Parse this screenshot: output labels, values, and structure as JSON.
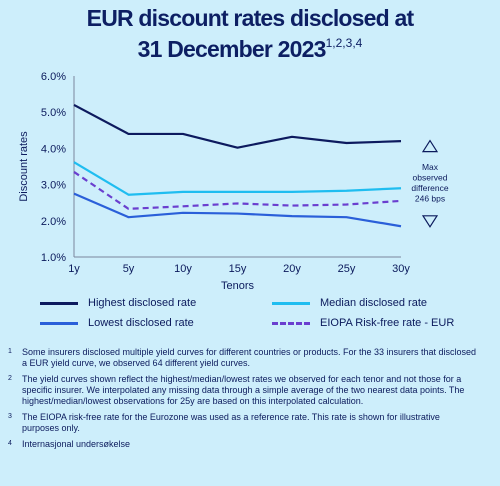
{
  "title": {
    "line1": "EUR discount rates disclosed at",
    "line2": "31 December 2023",
    "superscript": "1,2,3,4"
  },
  "chart_data": {
    "type": "line",
    "x": [
      "1y",
      "5y",
      "10y",
      "15y",
      "20y",
      "25y",
      "30y"
    ],
    "xlabel": "Tenors",
    "ylabel": "Discount rates",
    "ylim": [
      1.0,
      6.0
    ],
    "yticks": [
      "1.0%",
      "2.0%",
      "3.0%",
      "4.0%",
      "5.0%",
      "6.0%"
    ],
    "grid": false,
    "legend_placement": "bottom",
    "series": [
      {
        "name": "Highest disclosed rate",
        "color": "#0d1a5e",
        "dash": false,
        "values": [
          5.2,
          4.4,
          4.4,
          4.02,
          4.32,
          4.15,
          4.2
        ]
      },
      {
        "name": "Median disclosed rate",
        "color": "#1fbdf0",
        "dash": false,
        "values": [
          3.62,
          2.72,
          2.8,
          2.8,
          2.8,
          2.83,
          2.9
        ]
      },
      {
        "name": "Lowest disclosed rate",
        "color": "#2a5fd9",
        "dash": false,
        "values": [
          2.75,
          2.1,
          2.22,
          2.2,
          2.13,
          2.1,
          1.85
        ]
      },
      {
        "name": "EIOPA Risk-free rate - EUR",
        "color": "#6a3fcf",
        "dash": true,
        "values": [
          3.35,
          2.33,
          2.4,
          2.48,
          2.42,
          2.45,
          2.55
        ]
      }
    ],
    "annotation": {
      "lines": [
        "Max",
        "observed",
        "difference",
        "246 bps"
      ],
      "arrows": [
        "up-triangle-icon",
        "down-triangle-icon"
      ]
    }
  },
  "footnotes": [
    {
      "num": "1",
      "text": "Some insurers disclosed multiple yield curves for different countries or products. For the 33 insurers that disclosed a EUR yield curve, we observed 64 different yield curves."
    },
    {
      "num": "2",
      "text": "The yield curves shown reflect the highest/median/lowest rates we observed for each tenor and not those for a specific insurer. We interpolated any missing data through a simple average of the two nearest data points. The highest/median/lowest observations for 25y are based on this interpolated calculation."
    },
    {
      "num": "3",
      "text": "The EIOPA risk-free rate for the Eurozone was used as a reference rate. This rate is shown for illustrative purposes only."
    },
    {
      "num": "4",
      "text": "Internasjonal undersøkelse"
    }
  ]
}
